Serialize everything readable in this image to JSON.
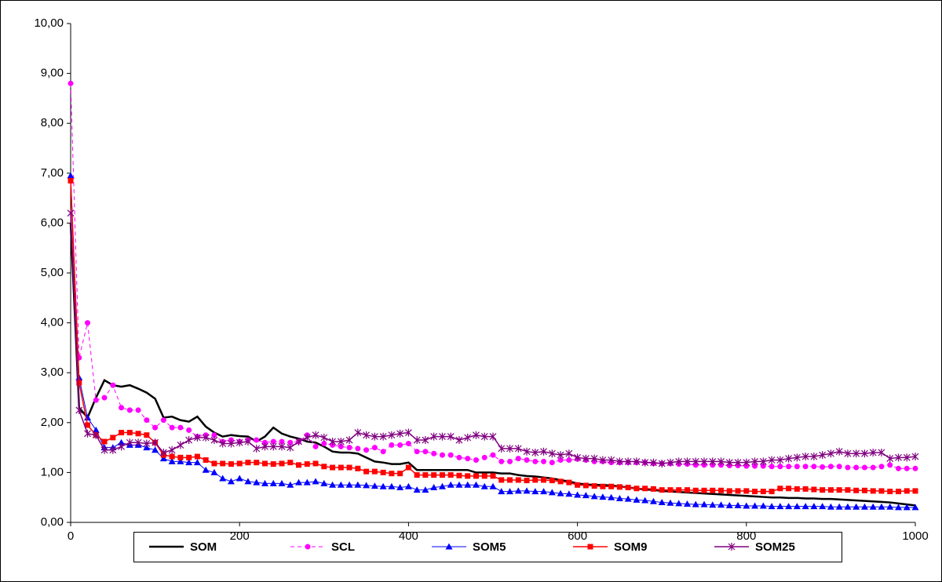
{
  "chart_data": {
    "type": "line",
    "x": [
      0,
      10,
      20,
      30,
      40,
      50,
      60,
      70,
      80,
      90,
      100,
      110,
      120,
      130,
      140,
      150,
      160,
      170,
      180,
      190,
      200,
      210,
      220,
      230,
      240,
      250,
      260,
      270,
      280,
      290,
      300,
      310,
      320,
      330,
      340,
      350,
      360,
      370,
      380,
      390,
      400,
      410,
      420,
      430,
      440,
      450,
      460,
      470,
      480,
      490,
      500,
      510,
      520,
      530,
      540,
      550,
      560,
      570,
      580,
      590,
      600,
      610,
      620,
      630,
      640,
      650,
      660,
      670,
      680,
      690,
      700,
      710,
      720,
      730,
      740,
      750,
      760,
      770,
      780,
      790,
      800,
      810,
      820,
      830,
      840,
      850,
      860,
      870,
      880,
      890,
      900,
      910,
      920,
      930,
      940,
      950,
      960,
      970,
      980,
      990,
      1000
    ],
    "series": [
      {
        "name": "SOM",
        "color": "#000000",
        "marker": "none",
        "dashed": false,
        "width": 2.5,
        "values": [
          6.0,
          2.3,
          2.1,
          2.5,
          2.85,
          2.75,
          2.72,
          2.75,
          2.68,
          2.6,
          2.48,
          2.1,
          2.12,
          2.05,
          2.02,
          2.12,
          1.92,
          1.8,
          1.72,
          1.75,
          1.73,
          1.72,
          1.62,
          1.72,
          1.9,
          1.78,
          1.72,
          1.68,
          1.62,
          1.6,
          1.52,
          1.42,
          1.4,
          1.4,
          1.38,
          1.3,
          1.22,
          1.2,
          1.17,
          1.17,
          1.2,
          1.05,
          1.05,
          1.05,
          1.05,
          1.05,
          1.05,
          1.05,
          1.0,
          1.0,
          1.0,
          0.98,
          0.98,
          0.95,
          0.93,
          0.92,
          0.9,
          0.88,
          0.85,
          0.82,
          0.78,
          0.76,
          0.75,
          0.75,
          0.74,
          0.72,
          0.7,
          0.68,
          0.66,
          0.65,
          0.63,
          0.62,
          0.61,
          0.6,
          0.59,
          0.58,
          0.57,
          0.56,
          0.55,
          0.54,
          0.53,
          0.52,
          0.51,
          0.5,
          0.5,
          0.49,
          0.49,
          0.48,
          0.48,
          0.47,
          0.47,
          0.46,
          0.45,
          0.44,
          0.43,
          0.42,
          0.41,
          0.4,
          0.38,
          0.36,
          0.34
        ]
      },
      {
        "name": "SCL",
        "color": "#FF00FF",
        "marker": "circle",
        "dashed": true,
        "width": 1,
        "values": [
          8.8,
          3.3,
          4.0,
          2.45,
          2.5,
          2.75,
          2.3,
          2.25,
          2.25,
          2.05,
          1.9,
          2.05,
          1.9,
          1.9,
          1.85,
          1.72,
          1.75,
          1.75,
          1.62,
          1.65,
          1.62,
          1.65,
          1.65,
          1.6,
          1.62,
          1.62,
          1.6,
          1.62,
          1.75,
          1.52,
          1.58,
          1.55,
          1.52,
          1.5,
          1.48,
          1.45,
          1.5,
          1.42,
          1.55,
          1.55,
          1.58,
          1.42,
          1.42,
          1.38,
          1.35,
          1.35,
          1.3,
          1.28,
          1.25,
          1.3,
          1.35,
          1.22,
          1.22,
          1.28,
          1.25,
          1.22,
          1.22,
          1.2,
          1.25,
          1.25,
          1.27,
          1.25,
          1.22,
          1.22,
          1.2,
          1.2,
          1.2,
          1.2,
          1.2,
          1.18,
          1.18,
          1.18,
          1.17,
          1.17,
          1.15,
          1.15,
          1.15,
          1.15,
          1.14,
          1.14,
          1.13,
          1.13,
          1.13,
          1.12,
          1.12,
          1.12,
          1.12,
          1.12,
          1.12,
          1.11,
          1.12,
          1.12,
          1.1,
          1.1,
          1.1,
          1.1,
          1.12,
          1.15,
          1.08,
          1.08,
          1.08
        ]
      },
      {
        "name": "SOM5",
        "color": "#0000FF",
        "marker": "triangle",
        "dashed": false,
        "width": 1,
        "values": [
          6.95,
          2.9,
          2.1,
          1.85,
          1.5,
          1.5,
          1.6,
          1.55,
          1.55,
          1.5,
          1.45,
          1.28,
          1.22,
          1.22,
          1.2,
          1.2,
          1.05,
          1.0,
          0.88,
          0.82,
          0.88,
          0.82,
          0.8,
          0.78,
          0.78,
          0.78,
          0.75,
          0.8,
          0.8,
          0.82,
          0.78,
          0.75,
          0.75,
          0.75,
          0.75,
          0.74,
          0.73,
          0.72,
          0.72,
          0.7,
          0.72,
          0.65,
          0.65,
          0.7,
          0.72,
          0.75,
          0.75,
          0.75,
          0.75,
          0.72,
          0.72,
          0.62,
          0.62,
          0.63,
          0.63,
          0.62,
          0.62,
          0.6,
          0.58,
          0.57,
          0.55,
          0.54,
          0.52,
          0.51,
          0.5,
          0.48,
          0.47,
          0.45,
          0.44,
          0.42,
          0.4,
          0.39,
          0.38,
          0.37,
          0.36,
          0.36,
          0.35,
          0.35,
          0.34,
          0.34,
          0.33,
          0.33,
          0.33,
          0.32,
          0.32,
          0.32,
          0.32,
          0.32,
          0.32,
          0.32,
          0.31,
          0.31,
          0.31,
          0.31,
          0.31,
          0.31,
          0.31,
          0.31,
          0.3,
          0.3,
          0.3
        ]
      },
      {
        "name": "SOM9",
        "color": "#FF0000",
        "marker": "square",
        "dashed": false,
        "width": 1.5,
        "values": [
          6.85,
          2.8,
          1.95,
          1.75,
          1.62,
          1.7,
          1.8,
          1.8,
          1.78,
          1.75,
          1.6,
          1.35,
          1.32,
          1.3,
          1.3,
          1.32,
          1.25,
          1.18,
          1.18,
          1.17,
          1.18,
          1.2,
          1.2,
          1.18,
          1.17,
          1.18,
          1.2,
          1.15,
          1.17,
          1.18,
          1.12,
          1.1,
          1.1,
          1.1,
          1.08,
          1.02,
          1.02,
          1.0,
          0.98,
          0.98,
          1.1,
          0.95,
          0.95,
          0.95,
          0.95,
          0.95,
          0.94,
          0.93,
          0.93,
          0.93,
          0.93,
          0.85,
          0.85,
          0.85,
          0.84,
          0.85,
          0.85,
          0.84,
          0.82,
          0.8,
          0.75,
          0.74,
          0.73,
          0.72,
          0.72,
          0.71,
          0.7,
          0.68,
          0.68,
          0.67,
          0.65,
          0.65,
          0.65,
          0.65,
          0.64,
          0.64,
          0.64,
          0.64,
          0.63,
          0.63,
          0.63,
          0.62,
          0.62,
          0.62,
          0.68,
          0.68,
          0.67,
          0.67,
          0.66,
          0.65,
          0.65,
          0.65,
          0.65,
          0.64,
          0.64,
          0.63,
          0.63,
          0.62,
          0.62,
          0.63,
          0.63
        ]
      },
      {
        "name": "SOM25",
        "color": "#800080",
        "marker": "star",
        "dashed": false,
        "width": 1.5,
        "values": [
          6.2,
          2.25,
          1.78,
          1.75,
          1.45,
          1.45,
          1.52,
          1.6,
          1.6,
          1.58,
          1.6,
          1.4,
          1.45,
          1.55,
          1.65,
          1.7,
          1.7,
          1.65,
          1.58,
          1.58,
          1.6,
          1.62,
          1.48,
          1.52,
          1.52,
          1.52,
          1.5,
          1.62,
          1.7,
          1.75,
          1.7,
          1.62,
          1.62,
          1.65,
          1.8,
          1.75,
          1.72,
          1.72,
          1.75,
          1.78,
          1.8,
          1.65,
          1.65,
          1.72,
          1.72,
          1.72,
          1.65,
          1.7,
          1.75,
          1.72,
          1.72,
          1.48,
          1.48,
          1.48,
          1.42,
          1.4,
          1.42,
          1.38,
          1.35,
          1.38,
          1.3,
          1.28,
          1.28,
          1.25,
          1.25,
          1.22,
          1.22,
          1.22,
          1.2,
          1.2,
          1.18,
          1.2,
          1.22,
          1.22,
          1.22,
          1.22,
          1.22,
          1.22,
          1.2,
          1.2,
          1.2,
          1.22,
          1.22,
          1.25,
          1.25,
          1.28,
          1.3,
          1.32,
          1.32,
          1.35,
          1.38,
          1.42,
          1.38,
          1.38,
          1.38,
          1.4,
          1.4,
          1.28,
          1.3,
          1.3,
          1.32
        ]
      }
    ],
    "xlim": [
      0,
      1000
    ],
    "xticks": [
      0,
      200,
      400,
      600,
      800,
      1000
    ],
    "ylim": [
      0,
      10
    ],
    "yticks": [
      {
        "value": 0,
        "label": "0,00"
      },
      {
        "value": 1,
        "label": "1,00"
      },
      {
        "value": 2,
        "label": "2,00"
      },
      {
        "value": 3,
        "label": "3,00"
      },
      {
        "value": 4,
        "label": "4,00"
      },
      {
        "value": 5,
        "label": "5,00"
      },
      {
        "value": 6,
        "label": "6,00"
      },
      {
        "value": 7,
        "label": "7,00"
      },
      {
        "value": 8,
        "label": "8,00"
      },
      {
        "value": 9,
        "label": "9,00"
      },
      {
        "value": 10,
        "label": "10,00"
      }
    ],
    "grid": false,
    "legend": "bottom"
  }
}
